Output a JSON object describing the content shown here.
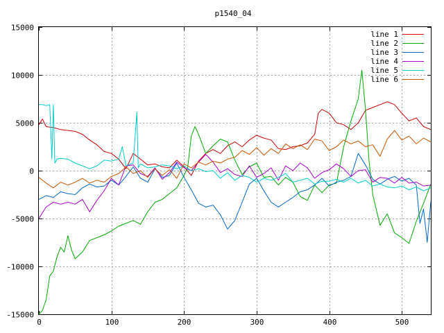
{
  "chart_data": {
    "type": "line",
    "title": "p1540_04",
    "xlabel": "",
    "ylabel": "",
    "xlim": [
      0,
      540
    ],
    "ylim": [
      -15000,
      15000
    ],
    "xticks": [
      0,
      100,
      200,
      300,
      400,
      500
    ],
    "yticks": [
      -15000,
      -10000,
      -5000,
      0,
      5000,
      10000,
      15000
    ],
    "grid": true,
    "legend_position": "top-right",
    "series": [
      {
        "name": "line 1",
        "color": "#cc0000",
        "x": [
          0,
          5,
          10,
          20,
          30,
          40,
          50,
          60,
          70,
          80,
          90,
          100,
          110,
          120,
          130,
          140,
          150,
          160,
          170,
          180,
          190,
          200,
          210,
          220,
          230,
          240,
          250,
          260,
          270,
          280,
          290,
          300,
          310,
          320,
          330,
          340,
          350,
          360,
          370,
          380,
          385,
          390,
          400,
          410,
          420,
          430,
          440,
          450,
          460,
          470,
          480,
          490,
          500,
          510,
          520,
          530,
          540
        ],
        "y": [
          4800,
          5400,
          4600,
          4500,
          4300,
          4200,
          4100,
          3800,
          3200,
          2700,
          2000,
          1800,
          1200,
          200,
          1800,
          1200,
          600,
          700,
          400,
          300,
          1100,
          400,
          -500,
          1000,
          1800,
          2200,
          1800,
          2600,
          3000,
          2500,
          3200,
          3700,
          3400,
          3200,
          2300,
          2200,
          2500,
          2600,
          2900,
          3800,
          6000,
          6400,
          6000,
          5000,
          4800,
          4300,
          5000,
          6300,
          6600,
          6900,
          7200,
          6900,
          6000,
          5200,
          5500,
          4600,
          4300
        ]
      },
      {
        "name": "line 2",
        "color": "#00aa00",
        "x": [
          0,
          5,
          10,
          15,
          20,
          25,
          30,
          35,
          40,
          45,
          50,
          60,
          70,
          80,
          90,
          100,
          110,
          120,
          130,
          140,
          150,
          160,
          170,
          180,
          190,
          200,
          205,
          210,
          215,
          220,
          230,
          240,
          250,
          260,
          270,
          280,
          290,
          300,
          310,
          320,
          330,
          340,
          350,
          360,
          370,
          380,
          390,
          400,
          410,
          420,
          430,
          440,
          445,
          450,
          455,
          460,
          470,
          480,
          490,
          500,
          510,
          520,
          530,
          540
        ],
        "y": [
          -15000,
          -14600,
          -13500,
          -11000,
          -10500,
          -9000,
          -8000,
          -8500,
          -6800,
          -8300,
          -9200,
          -8500,
          -7300,
          -7000,
          -6700,
          -6300,
          -5800,
          -5500,
          -5200,
          -5600,
          -4300,
          -3300,
          -3000,
          -2400,
          -1800,
          -500,
          300,
          3600,
          4600,
          3800,
          1800,
          2600,
          3300,
          3000,
          1100,
          -400,
          400,
          800,
          -700,
          -600,
          -1500,
          -700,
          -1200,
          -2700,
          -3100,
          -1500,
          -2300,
          -1500,
          -1300,
          2500,
          5200,
          7500,
          10500,
          6400,
          900,
          -2500,
          -5700,
          -4500,
          -6500,
          -7000,
          -7600,
          -5300,
          -3400,
          -1400
        ]
      },
      {
        "name": "line 3",
        "color": "#0066cc",
        "x": [
          0,
          10,
          20,
          30,
          40,
          50,
          60,
          70,
          80,
          90,
          100,
          110,
          120,
          130,
          140,
          150,
          160,
          170,
          180,
          190,
          200,
          210,
          220,
          230,
          240,
          250,
          260,
          270,
          280,
          290,
          300,
          310,
          320,
          330,
          340,
          350,
          360,
          370,
          380,
          390,
          400,
          410,
          420,
          430,
          440,
          450,
          460,
          470,
          480,
          490,
          500,
          510,
          520,
          525,
          530,
          535,
          540
        ],
        "y": [
          -3000,
          -2600,
          -2800,
          -2200,
          -2400,
          -2500,
          -1800,
          -1400,
          -1700,
          -1600,
          -1000,
          -1500,
          -600,
          400,
          -800,
          -1200,
          200,
          -700,
          -500,
          800,
          -700,
          -2000,
          -3400,
          -3800,
          -3600,
          -4600,
          -6100,
          -5200,
          -3300,
          -1400,
          -800,
          -2100,
          -3300,
          -3800,
          -3300,
          -2800,
          -2200,
          -2000,
          -1500,
          -800,
          -1600,
          -1200,
          -1000,
          -600,
          1800,
          600,
          -900,
          -1400,
          -900,
          -600,
          -1100,
          -800,
          -1500,
          -5500,
          -4000,
          -7500,
          -3200
        ]
      },
      {
        "name": "line 4",
        "color": "#aa00cc",
        "x": [
          0,
          10,
          20,
          30,
          40,
          50,
          60,
          70,
          80,
          90,
          100,
          110,
          120,
          130,
          140,
          150,
          160,
          170,
          180,
          190,
          200,
          210,
          220,
          230,
          240,
          250,
          260,
          270,
          280,
          290,
          300,
          310,
          320,
          330,
          340,
          350,
          360,
          370,
          380,
          390,
          400,
          410,
          420,
          430,
          440,
          450,
          460,
          470,
          480,
          490,
          500,
          510,
          520,
          530,
          540
        ],
        "y": [
          -5000,
          -3800,
          -3300,
          -3500,
          -3300,
          -3500,
          -3000,
          -4300,
          -3100,
          -2100,
          -800,
          -1500,
          500,
          600,
          -300,
          -600,
          300,
          -900,
          -200,
          900,
          300,
          0,
          900,
          1700,
          900,
          -200,
          200,
          -400,
          -600,
          500,
          -700,
          -300,
          300,
          -1000,
          500,
          0,
          800,
          300,
          -800,
          -200,
          100,
          700,
          200,
          -600,
          0,
          100,
          -1200,
          -700,
          -800,
          -1300,
          -700,
          -1300,
          -1200,
          -1600,
          -1500
        ]
      },
      {
        "name": "line 5",
        "color": "#00cccc",
        "x": [
          0,
          5,
          10,
          15,
          18,
          20,
          22,
          25,
          30,
          40,
          50,
          60,
          70,
          80,
          90,
          100,
          110,
          115,
          120,
          130,
          135,
          137,
          140,
          150,
          160,
          170,
          180,
          190,
          200,
          210,
          220,
          230,
          240,
          250,
          260,
          270,
          280,
          290,
          300,
          310,
          320,
          330,
          340,
          350,
          360,
          370,
          380,
          390,
          400,
          410,
          420,
          430,
          440,
          450,
          460,
          470,
          480,
          490,
          500,
          510,
          520,
          530,
          540
        ],
        "y": [
          6900,
          6900,
          6800,
          6900,
          1200,
          6900,
          800,
          1200,
          1300,
          1200,
          800,
          500,
          200,
          500,
          1100,
          1000,
          1200,
          2500,
          500,
          800,
          6100,
          300,
          700,
          300,
          400,
          600,
          500,
          200,
          500,
          0,
          200,
          -100,
          0,
          -800,
          -200,
          -1000,
          -500,
          -700,
          -1200,
          -800,
          -1000,
          -700,
          -300,
          -1200,
          -1000,
          -800,
          -1400,
          -1100,
          -1100,
          -900,
          -1200,
          -800,
          -1300,
          -1000,
          -1600,
          -1400,
          -1700,
          -1800,
          -1600,
          -2000,
          -1700,
          -2100,
          -1800
        ]
      },
      {
        "name": "line 6",
        "color": "#cc5500",
        "x": [
          0,
          10,
          20,
          30,
          40,
          50,
          60,
          70,
          80,
          90,
          100,
          110,
          120,
          130,
          140,
          150,
          160,
          170,
          180,
          190,
          200,
          210,
          220,
          230,
          240,
          250,
          260,
          270,
          280,
          290,
          300,
          310,
          320,
          330,
          340,
          350,
          360,
          370,
          380,
          390,
          400,
          410,
          420,
          430,
          440,
          450,
          460,
          470,
          480,
          490,
          500,
          510,
          520,
          530,
          540
        ],
        "y": [
          -700,
          -1300,
          -1800,
          -1200,
          -1500,
          -1200,
          -800,
          -1300,
          -1000,
          -1200,
          -600,
          -300,
          400,
          -300,
          0,
          -700,
          200,
          -500,
          100,
          -800,
          700,
          300,
          900,
          600,
          1000,
          800,
          1200,
          1400,
          2100,
          1700,
          2400,
          1600,
          2300,
          1800,
          2800,
          2300,
          2700,
          2200,
          3300,
          3100,
          2100,
          2500,
          3200,
          2800,
          3100,
          2500,
          2700,
          1500,
          3300,
          4200,
          3200,
          3600,
          2800,
          3400,
          3000
        ]
      }
    ]
  }
}
